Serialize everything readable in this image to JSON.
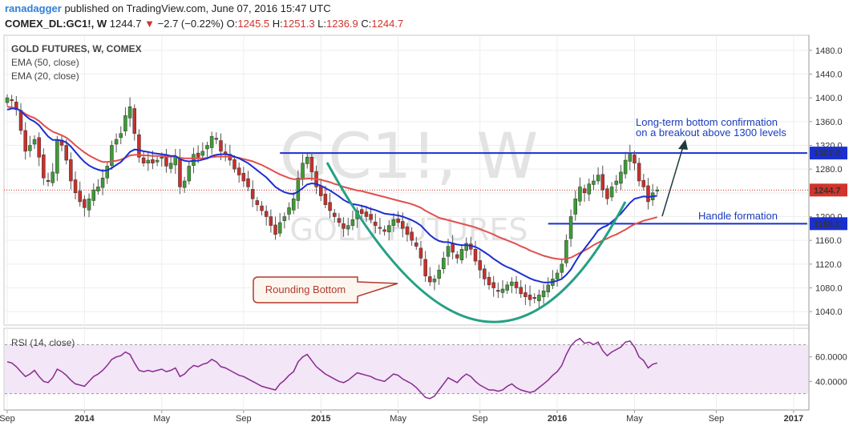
{
  "header": {
    "author": "ranadagger",
    "published_text": "published on TradingView.com, June 07, 2016 15:47 UTC",
    "symbol": "COMEX_DL:GC1!, W",
    "last": "1244.7",
    "change": "−2.7 (−0.22%)",
    "open_label": "O:",
    "open": "1245.5",
    "high_label": "H:",
    "high": "1251.3",
    "low_label": "L:",
    "low": "1236.9",
    "close_label": "C:",
    "close": "1244.7"
  },
  "chart_data": {
    "type": "candlestick",
    "title": "GOLD FUTURES, W, COMEX",
    "watermark_symbol": "GC1!, W",
    "watermark_name": "GOLD FUTURES",
    "indicators": [
      "EMA (50, close)",
      "EMA (20, close)"
    ],
    "ylim": [
      1020,
      1500
    ],
    "y_ticks": [
      "1480.0",
      "1440.0",
      "1400.0",
      "1360.0",
      "1320.0",
      "1280.0",
      "1240.0",
      "1200.0",
      "1160.0",
      "1120.0",
      "1080.0",
      "1040.0"
    ],
    "x_ticks": [
      "Sep",
      "2014",
      "May",
      "Sep",
      "2015",
      "May",
      "Sep",
      "2016",
      "May",
      "Sep",
      "2017"
    ],
    "x_tick_weeks": [
      0,
      17,
      34,
      52,
      69,
      86,
      104,
      121,
      138,
      156,
      173
    ],
    "price_labels": [
      {
        "value": 1307.0,
        "text": "1307.0",
        "color": "#1a2fcf"
      },
      {
        "value": 1244.7,
        "text": "1244.7",
        "color": "#d0342c"
      },
      {
        "value": 1188.1,
        "text": "1188.1",
        "color": "#1a2fcf"
      }
    ],
    "horizontal_lines": [
      {
        "value": 1307.0,
        "from_week": 60,
        "to_week": 176,
        "color": "#1a2fcf"
      },
      {
        "value": 1188.1,
        "from_week": 119,
        "to_week": 176,
        "color": "#1a2fcf"
      }
    ],
    "current_price_line": 1244.7,
    "closes": [
      1400,
      1395,
      1380,
      1345,
      1310,
      1320,
      1330,
      1300,
      1265,
      1260,
      1275,
      1330,
      1320,
      1295,
      1260,
      1240,
      1225,
      1215,
      1230,
      1245,
      1250,
      1265,
      1285,
      1320,
      1330,
      1340,
      1370,
      1385,
      1340,
      1300,
      1290,
      1295,
      1290,
      1295,
      1300,
      1285,
      1290,
      1300,
      1250,
      1260,
      1285,
      1305,
      1300,
      1310,
      1320,
      1335,
      1330,
      1310,
      1305,
      1295,
      1280,
      1270,
      1260,
      1250,
      1230,
      1220,
      1210,
      1200,
      1185,
      1170,
      1190,
      1200,
      1215,
      1230,
      1265,
      1290,
      1300,
      1275,
      1250,
      1235,
      1220,
      1210,
      1200,
      1190,
      1180,
      1185,
      1195,
      1210,
      1205,
      1200,
      1195,
      1185,
      1180,
      1175,
      1185,
      1195,
      1190,
      1180,
      1170,
      1160,
      1150,
      1130,
      1100,
      1090,
      1095,
      1110,
      1130,
      1150,
      1140,
      1130,
      1145,
      1155,
      1145,
      1125,
      1110,
      1095,
      1085,
      1080,
      1075,
      1078,
      1085,
      1090,
      1080,
      1070,
      1065,
      1060,
      1062,
      1068,
      1075,
      1085,
      1095,
      1105,
      1120,
      1160,
      1200,
      1230,
      1250,
      1240,
      1255,
      1260,
      1270,
      1245,
      1230,
      1250,
      1260,
      1275,
      1295,
      1305,
      1290,
      1260,
      1250,
      1225,
      1240,
      1245
    ],
    "ema50": [
      1385,
      1384,
      1382,
      1378,
      1373,
      1369,
      1366,
      1361,
      1354,
      1348,
      1343,
      1340,
      1337,
      1333,
      1327,
      1320,
      1314,
      1308,
      1303,
      1299,
      1295,
      1292,
      1292,
      1293,
      1294,
      1296,
      1299,
      1303,
      1304,
      1304,
      1303,
      1303,
      1302,
      1302,
      1302,
      1301,
      1301,
      1301,
      1299,
      1298,
      1298,
      1298,
      1298,
      1298,
      1299,
      1300,
      1301,
      1301,
      1301,
      1301,
      1300,
      1299,
      1297,
      1295,
      1293,
      1290,
      1287,
      1283,
      1279,
      1275,
      1271,
      1268,
      1265,
      1263,
      1263,
      1263,
      1264,
      1264,
      1263,
      1262,
      1260,
      1258,
      1255,
      1253,
      1250,
      1248,
      1246,
      1244,
      1243,
      1241,
      1239,
      1237,
      1235,
      1233,
      1231,
      1229,
      1227,
      1225,
      1223,
      1221,
      1218,
      1215,
      1210,
      1206,
      1202,
      1198,
      1196,
      1194,
      1192,
      1190,
      1188,
      1186,
      1184,
      1182,
      1179,
      1176,
      1173,
      1170,
      1166,
      1163,
      1160,
      1157,
      1154,
      1150,
      1147,
      1143,
      1140,
      1137,
      1134,
      1132,
      1130,
      1129,
      1128,
      1129,
      1131,
      1135,
      1139,
      1143,
      1147,
      1152,
      1156,
      1160,
      1163,
      1167,
      1170,
      1174,
      1178,
      1183,
      1187,
      1190,
      1193,
      1195,
      1197,
      1199
    ],
    "ema20": [
      1380,
      1382,
      1382,
      1378,
      1370,
      1364,
      1360,
      1354,
      1344,
      1335,
      1329,
      1329,
      1328,
      1325,
      1318,
      1309,
      1300,
      1292,
      1286,
      1282,
      1279,
      1277,
      1278,
      1282,
      1287,
      1292,
      1300,
      1309,
      1313,
      1312,
      1310,
      1309,
      1307,
      1306,
      1305,
      1304,
      1302,
      1302,
      1297,
      1294,
      1293,
      1294,
      1294,
      1296,
      1298,
      1302,
      1304,
      1305,
      1305,
      1304,
      1301,
      1298,
      1294,
      1290,
      1284,
      1278,
      1272,
      1266,
      1258,
      1250,
      1245,
      1241,
      1239,
      1238,
      1242,
      1248,
      1254,
      1256,
      1255,
      1252,
      1248,
      1244,
      1239,
      1234,
      1228,
      1224,
      1221,
      1220,
      1218,
      1216,
      1213,
      1211,
      1208,
      1205,
      1204,
      1203,
      1202,
      1200,
      1197,
      1194,
      1190,
      1185,
      1177,
      1169,
      1163,
      1159,
      1157,
      1157,
      1155,
      1153,
      1152,
      1152,
      1151,
      1149,
      1145,
      1140,
      1135,
      1129,
      1124,
      1119,
      1115,
      1112,
      1108,
      1104,
      1100,
      1096,
      1093,
      1091,
      1089,
      1089,
      1090,
      1092,
      1095,
      1102,
      1111,
      1124,
      1136,
      1146,
      1156,
      1166,
      1177,
      1182,
      1185,
      1191,
      1198,
      1205,
      1214,
      1223,
      1230,
      1232,
      1234,
      1233,
      1234,
      1235
    ],
    "rsi": {
      "label": "RSI (14, close)",
      "ylim": [
        18,
        82
      ],
      "ticks": [
        "60.0000",
        "40.0000"
      ],
      "upper_band": 70,
      "lower_band": 30,
      "values": [
        56,
        55,
        52,
        48,
        44,
        46,
        49,
        44,
        40,
        39,
        43,
        50,
        48,
        45,
        41,
        38,
        37,
        36,
        40,
        44,
        46,
        49,
        53,
        58,
        60,
        61,
        64,
        62,
        55,
        49,
        48,
        49,
        48,
        49,
        50,
        48,
        49,
        51,
        44,
        46,
        50,
        53,
        52,
        54,
        55,
        58,
        56,
        52,
        51,
        49,
        47,
        45,
        44,
        42,
        40,
        38,
        36,
        35,
        34,
        33,
        38,
        41,
        45,
        48,
        56,
        60,
        62,
        57,
        52,
        49,
        46,
        44,
        42,
        40,
        39,
        41,
        44,
        47,
        46,
        45,
        44,
        42,
        41,
        40,
        43,
        46,
        45,
        42,
        40,
        38,
        35,
        31,
        27,
        26,
        28,
        33,
        38,
        43,
        41,
        39,
        43,
        46,
        44,
        40,
        37,
        35,
        33,
        33,
        32,
        33,
        36,
        38,
        35,
        33,
        32,
        31,
        32,
        35,
        38,
        41,
        45,
        48,
        53,
        62,
        69,
        73,
        75,
        71,
        72,
        70,
        72,
        65,
        61,
        64,
        66,
        68,
        72,
        73,
        68,
        60,
        57,
        51,
        54,
        55
      ]
    }
  },
  "annotations": {
    "breakout_line1": "Long-term bottom confirmation",
    "breakout_line2": "on a breakout above 1300 levels",
    "handle": "Handle formation",
    "rounding": "Rounding Bottom"
  },
  "colors": {
    "up_candle": "#3d9b35",
    "down_candle": "#c8302a",
    "ema50": "#e0504c",
    "ema20": "#1c2fd0",
    "rounding_curve": "#26a084",
    "rsi_line": "#8a2a8f",
    "rsi_band_fill": "#f2e6f7",
    "level_line": "#1a2fcf"
  }
}
